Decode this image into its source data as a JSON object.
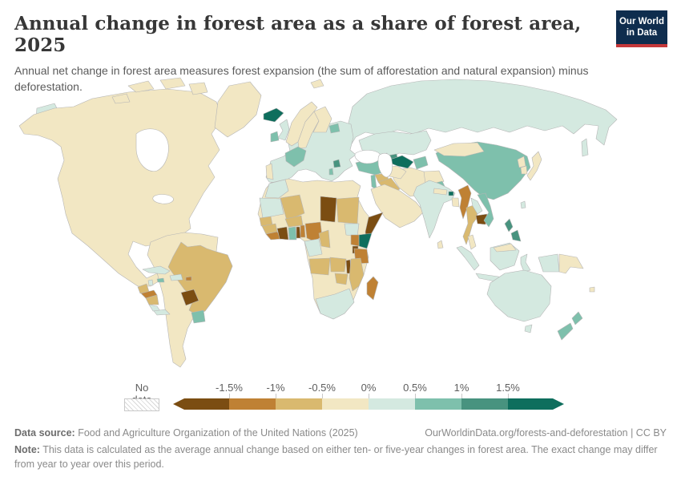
{
  "header": {
    "title": "Annual change in forest area as a share of forest area, 2025",
    "logo": {
      "line1": "Our World",
      "line2": "in Data",
      "bg_color": "#0f2d4e",
      "stripe_color": "#c5383a"
    }
  },
  "subtitle": "Annual net change in forest area measures forest expansion (the sum of afforestation and natural expansion) minus deforestation.",
  "legend": {
    "no_data_label": "No data",
    "tick_labels": [
      "-1.5%",
      "-1%",
      "-0.5%",
      "0%",
      "0.5%",
      "1%",
      "1.5%"
    ]
  },
  "footer": {
    "source_label": "Data source:",
    "source_text": " Food and Agriculture Organization of the United Nations (2025)",
    "link_text": "OurWorldinData.org/forests-and-deforestation | CC BY",
    "note_label": "Note:",
    "note_text": " This data is calculated as the average annual change based on either ten- or five-year changes in forest area. The exact change may differ from year to year over this period."
  },
  "chart_data": {
    "type": "choropleth_map",
    "title": "Annual change in forest area as a share of forest area",
    "year": 2025,
    "unit": "% of forest area per year",
    "legend_position": "bottom",
    "bins": [
      {
        "range": "< -1.5%",
        "color": "#7b4d12"
      },
      {
        "range": "-1.5% to -1%",
        "color": "#bf8134"
      },
      {
        "range": "-1% to -0.5%",
        "color": "#d9b96f"
      },
      {
        "range": "-0.5% to 0%",
        "color": "#f2e7c3"
      },
      {
        "range": "0% to 0.5%",
        "color": "#d4e9e0"
      },
      {
        "range": "0.5% to 1%",
        "color": "#7ec0ac"
      },
      {
        "range": "1% to 1.5%",
        "color": "#48937f"
      },
      {
        "range": "> 1.5%",
        "color": "#0e6e5d"
      }
    ],
    "ocean_color": "#ffffff",
    "no_data_pattern": "diagonal-hatch",
    "countries": {
      "russia": 4,
      "sakhalin": 4,
      "russia-chukotka": 4,
      "kazakhstan": 4,
      "north-america": 3,
      "canada-arctic-islands": 3,
      "greenland": 3,
      "svalbard": 3,
      "europe": 4,
      "norway": 3,
      "sweden": 3,
      "finland": 3,
      "iceland": 7,
      "uk": 4,
      "ireland": 5,
      "portugal": 3,
      "france": 5,
      "baltic-states": 5,
      "serbia": 6,
      "albania": 5,
      "turkey": 5,
      "georgia": 5,
      "azerbaijan": 6,
      "levant": 5,
      "syria": 2,
      "iraq": 2,
      "arabia": 3,
      "iran": 3,
      "afghanistan": 3,
      "pakistan": 5,
      "turkmenistan": 3,
      "uzbekistan": 7,
      "kyrgyzstan-tajikistan": 5,
      "africa": 3,
      "morocco": 4,
      "western-sahara-mauritania": 4,
      "mali": 2,
      "senegal": 2,
      "guinea": 2,
      "sierra-leone-liberia": 1,
      "cote-divoire": 0,
      "ghana": 5,
      "togo": 0,
      "benin": 1,
      "burkina-faso": 2,
      "nigeria": 1,
      "chad": 0,
      "sudan": 2,
      "cameroon": 2,
      "south-sudan": 4,
      "somalia": 0,
      "kenya": 7,
      "uganda": 1,
      "rwanda-burundi": 0,
      "tanzania": 1,
      "congo-gabon": 4,
      "angola": 2,
      "zambia": 2,
      "malawi": 0,
      "mozambique": 2,
      "zimbabwe": 2,
      "south-africa": 4,
      "madagascar": 1,
      "south-america": 3,
      "brazil": 2,
      "paraguay": 0,
      "uruguay": 5,
      "guatemala": 2,
      "belize": 4,
      "honduras": 1,
      "nicaragua": 2,
      "costa-rica": 4,
      "panama": 4,
      "cuba": 4,
      "jamaica": 5,
      "hispaniola": 4,
      "puerto-rico": 1,
      "china": 5,
      "mongolia": 3,
      "north-korea": 3,
      "south-korea": 3,
      "japan": 3,
      "taiwan": 4,
      "india": 4,
      "nepal": 3,
      "bhutan": 7,
      "bangladesh": 3,
      "sri-lanka": 3,
      "myanmar": 1,
      "thailand": 2,
      "laos": 4,
      "cambodia": 0,
      "vietnam": 5,
      "malaysia-peninsula": 3,
      "sumatra": 4,
      "borneo": 4,
      "malaysia-borneo": 3,
      "java": 4,
      "sulawesi": 4,
      "west-papua": 4,
      "papua-new-guinea": 3,
      "philippines": 6,
      "australia": 4,
      "tasmania": 4,
      "new-zealand": 5,
      "fiji": 3
    }
  }
}
